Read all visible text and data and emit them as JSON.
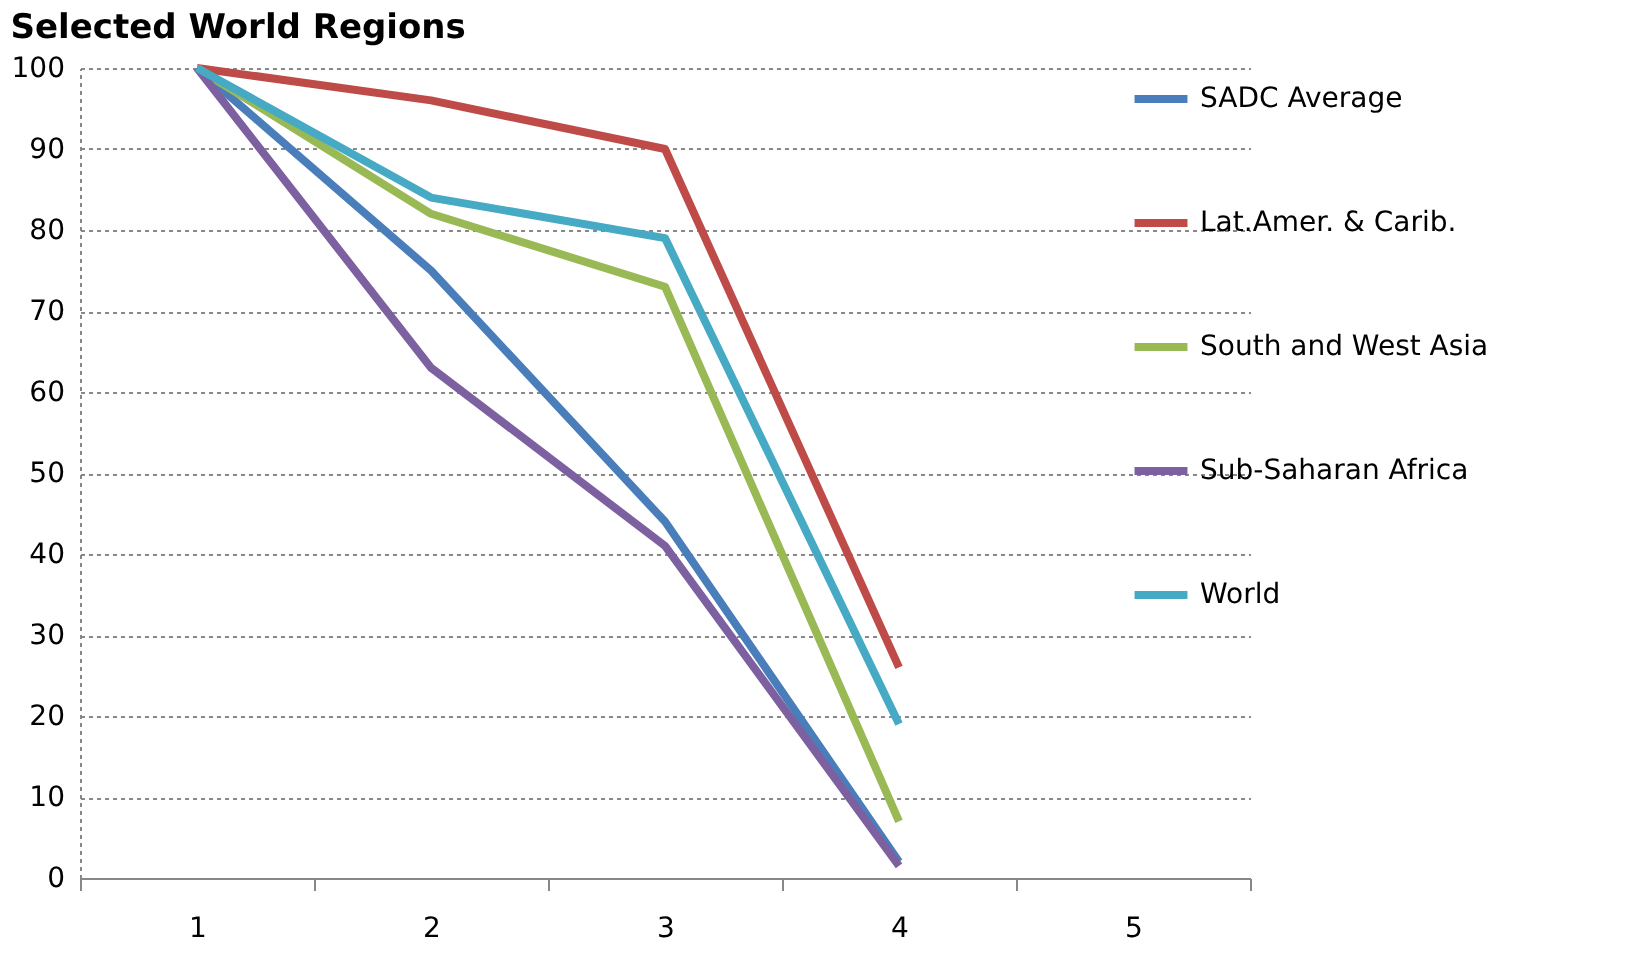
{
  "chart_data": {
    "type": "line",
    "title": "Selected World Regions",
    "categories": [
      "1",
      "2",
      "3",
      "4",
      "5"
    ],
    "series": [
      {
        "name": "SADC Average",
        "color": "#4a7ebb",
        "values": [
          100,
          75,
          44,
          2,
          null
        ]
      },
      {
        "name": "Lat.Amer. & Carib.",
        "color": "#be4b48",
        "values": [
          100,
          96,
          90,
          26,
          null
        ]
      },
      {
        "name": "South and West Asia",
        "color": "#98b954",
        "values": [
          100,
          82,
          73,
          7,
          null
        ]
      },
      {
        "name": "Sub-Saharan Africa",
        "color": "#7d60a0",
        "values": [
          100,
          63,
          41,
          1.5,
          null
        ]
      },
      {
        "name": "World",
        "color": "#46aac5",
        "values": [
          100,
          84,
          79,
          19,
          null
        ]
      }
    ],
    "ylim": [
      0,
      100
    ],
    "yticks": [
      0,
      10,
      20,
      30,
      40,
      50,
      60,
      70,
      80,
      90,
      100
    ],
    "grid": "y",
    "legend": "right",
    "marker": "none",
    "line_style": "solid"
  }
}
